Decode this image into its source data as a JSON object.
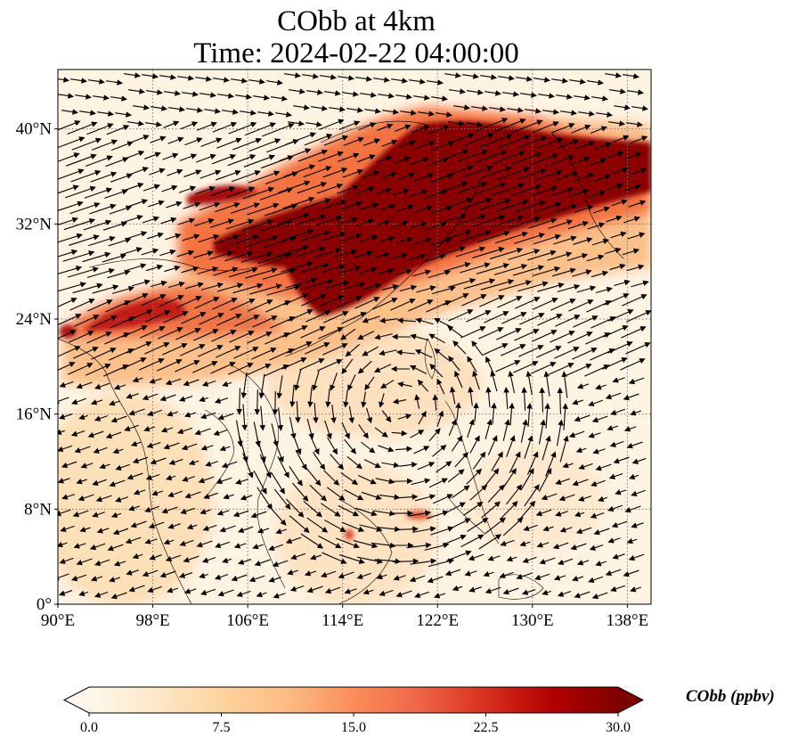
{
  "title": {
    "line1": "CObb at 4km",
    "line2": "Time: 2024-02-22 04:00:00"
  },
  "map": {
    "lon_range": [
      90,
      140
    ],
    "lat_range": [
      0,
      45
    ],
    "x_ticks": [
      "90°E",
      "98°E",
      "106°E",
      "114°E",
      "122°E",
      "130°E",
      "138°E"
    ],
    "x_tick_values": [
      90,
      98,
      106,
      114,
      122,
      130,
      138
    ],
    "y_ticks": [
      "0°",
      "8°N",
      "16°N",
      "24°N",
      "32°N",
      "40°N"
    ],
    "y_tick_values": [
      0,
      8,
      16,
      24,
      32,
      40
    ],
    "gridlines": true,
    "gridline_style": "dotted",
    "vectors": "wind arrows"
  },
  "colorbar": {
    "title": "CObb (ppbv)",
    "ticks": [
      "0.0",
      "7.5",
      "15.0",
      "22.5",
      "30.0"
    ],
    "tick_values": [
      0,
      7.5,
      15,
      22.5,
      30
    ],
    "range": [
      0,
      30
    ],
    "extend": "both",
    "colormap": "OrRd",
    "colors": [
      "#fff7ec",
      "#fee8c8",
      "#fdd49e",
      "#fdbb84",
      "#fc8d59",
      "#ef6548",
      "#d7301f",
      "#b30000",
      "#7f0000"
    ]
  }
}
